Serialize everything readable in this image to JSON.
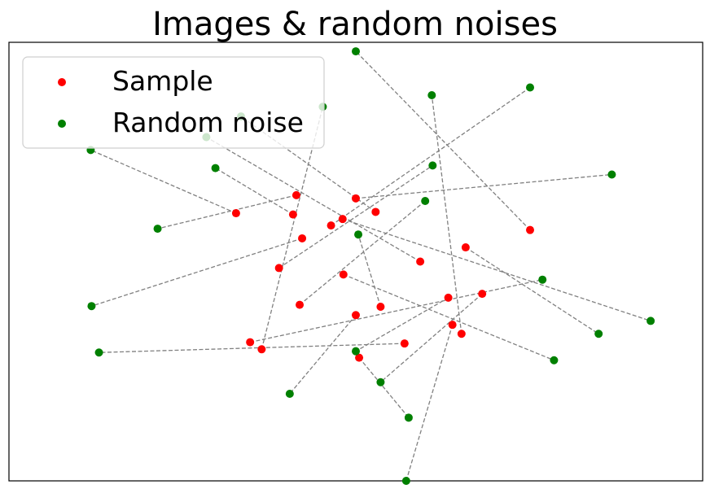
{
  "chart_data": {
    "type": "scatter",
    "title": "Images & random noises",
    "xlabel": "",
    "ylabel": "",
    "xlim": [
      -4.2,
      4.2
    ],
    "ylim": [
      -3.4,
      3.4
    ],
    "axis_ticks": false,
    "grid": false,
    "legend_position": "top-left",
    "connectors": "dashed gray line from each sample to its paired noise point",
    "series": [
      {
        "name": "Sample",
        "color": "#ff0000",
        "points": [
          [
            -0.72,
            1.03
          ],
          [
            0.0,
            0.98
          ],
          [
            -1.45,
            0.75
          ],
          [
            -0.76,
            0.73
          ],
          [
            -0.16,
            0.66
          ],
          [
            0.24,
            0.77
          ],
          [
            -0.3,
            0.56
          ],
          [
            2.11,
            0.49
          ],
          [
            -0.65,
            0.36
          ],
          [
            1.33,
            0.22
          ],
          [
            -0.93,
            -0.1
          ],
          [
            0.78,
            0.0
          ],
          [
            -0.15,
            -0.2
          ],
          [
            1.12,
            -0.56
          ],
          [
            0.3,
            -0.7
          ],
          [
            -0.68,
            -0.67
          ],
          [
            0.0,
            -0.83
          ],
          [
            1.17,
            -0.98
          ],
          [
            1.53,
            -0.5
          ],
          [
            1.28,
            -1.12
          ],
          [
            -1.14,
            -1.36
          ],
          [
            0.59,
            -1.27
          ],
          [
            0.04,
            -1.49
          ],
          [
            -1.28,
            -1.25
          ]
        ]
      },
      {
        "name": "Random noise",
        "color": "#008000",
        "points": [
          [
            -2.4,
            0.51
          ],
          [
            3.1,
            1.35
          ],
          [
            -3.21,
            1.73
          ],
          [
            -1.7,
            1.45
          ],
          [
            3.57,
            -0.92
          ],
          [
            -1.39,
            2.25
          ],
          [
            2.11,
            2.7
          ],
          [
            0.0,
            3.26
          ],
          [
            -3.2,
            -0.69
          ],
          [
            2.94,
            -1.12
          ],
          [
            0.93,
            1.49
          ],
          [
            -1.81,
            1.93
          ],
          [
            2.4,
            -1.53
          ],
          [
            0.0,
            -1.39
          ],
          [
            0.03,
            0.42
          ],
          [
            0.84,
            0.94
          ],
          [
            -0.8,
            -2.05
          ],
          [
            0.61,
            -3.4
          ],
          [
            0.3,
            -1.87
          ],
          [
            0.92,
            2.58
          ],
          [
            -0.4,
            2.4
          ],
          [
            -3.11,
            -1.41
          ],
          [
            0.64,
            -2.42
          ],
          [
            2.26,
            -0.28
          ]
        ]
      }
    ]
  }
}
